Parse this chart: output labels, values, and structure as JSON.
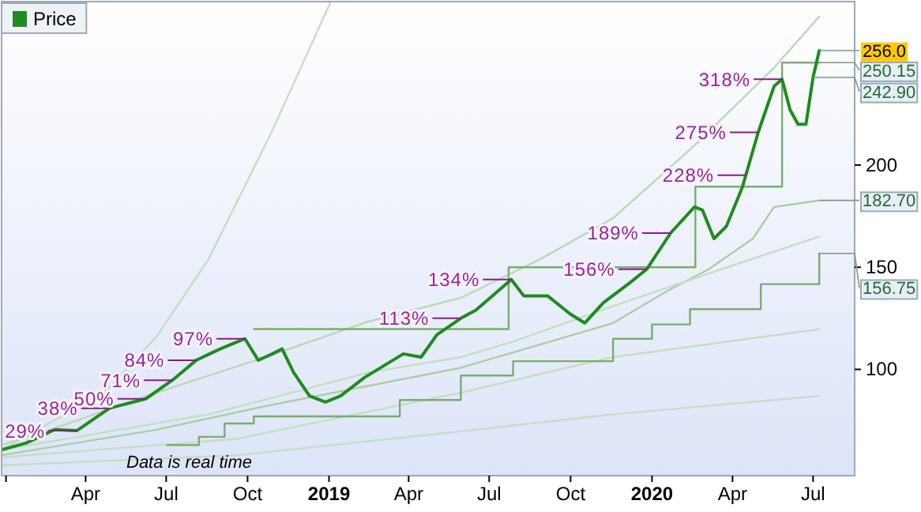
{
  "chart_data": {
    "type": "line",
    "xlim": [
      "2017-12-27",
      "2020-08-17"
    ],
    "ylim": [
      48,
      280
    ],
    "xticks": [
      {
        "value": "2018-01-01",
        "label": null
      },
      {
        "value": "2018-04-01",
        "label": "Apr"
      },
      {
        "value": "2018-07-01",
        "label": "Jul"
      },
      {
        "value": "2018-10-01",
        "label": "Oct"
      },
      {
        "value": "2019-01-01",
        "label": "2019"
      },
      {
        "value": "2019-04-01",
        "label": "Apr"
      },
      {
        "value": "2019-07-01",
        "label": "Jul"
      },
      {
        "value": "2019-10-01",
        "label": "Oct"
      },
      {
        "value": "2020-01-01",
        "label": "2020"
      },
      {
        "value": "2020-04-01",
        "label": "Apr"
      },
      {
        "value": "2020-07-01",
        "label": "Jul"
      }
    ],
    "yticks": [
      100,
      150,
      200
    ],
    "legend": "top left",
    "series": [
      {
        "color": "#c4dfc0",
        "x": [
          "2017-12-27",
          "2018-04-23",
          "2018-06-20",
          "2018-08-18",
          "2018-10-29",
          "2019-01-03"
        ],
        "values": [
          60.6,
          89,
          116,
          154,
          217,
          280
        ]
      },
      {
        "color": "#b9dab4",
        "x": [
          "2017-12-27",
          "2018-02-20",
          "2018-06-20",
          "2018-10-21",
          "2019-02-15",
          "2019-05-30",
          "2019-08-28",
          "2019-11-18",
          "2020-02-19",
          "2020-05-18",
          "2020-07-08"
        ],
        "values": [
          63,
          70.5,
          88.6,
          106,
          123.5,
          135,
          154,
          174,
          210,
          247.7,
          272.7
        ]
      },
      {
        "color": "#a9cfa2",
        "x": [
          "2017-12-27",
          "2018-06-20",
          "2018-10-21",
          "2019-02-15",
          "2019-05-30",
          "2019-11-18",
          "2020-01-19",
          "2020-03-05",
          "2020-04-24",
          "2020-05-18",
          "2020-07-08"
        ],
        "values": [
          58,
          70.5,
          82,
          92,
          100.8,
          122.7,
          138.6,
          149,
          164,
          179.5,
          182.7
        ]
      },
      {
        "color": "#c4dfc0",
        "x": [
          "2017-12-27",
          "2018-08-18",
          "2019-02-15",
          "2019-05-30",
          "2019-07-28",
          "2019-11-18",
          "2020-03-19",
          "2020-07-08"
        ],
        "values": [
          60.6,
          78,
          98.5,
          106,
          113.6,
          131,
          149,
          165
        ]
      },
      {
        "color": "#c4dfc0",
        "x": [
          "2017-12-27",
          "2018-09-19",
          "2019-05-30",
          "2019-11-18",
          "2020-07-08"
        ],
        "values": [
          57,
          66,
          88.6,
          106,
          119.7
        ]
      },
      {
        "color": "#c4dfc0",
        "x": [
          "2017-12-27",
          "2018-09-19",
          "2019-05-30",
          "2019-11-18",
          "2020-07-08"
        ],
        "values": [
          53,
          58,
          69.7,
          78,
          87
        ]
      },
      {
        "type": "step",
        "color": "#78ad72",
        "x": [
          "2018-10-08",
          "2019-07-23",
          "2020-02-19",
          "2020-05-27",
          "2020-07-08"
        ],
        "values": [
          119.7,
          150,
          189.4,
          250.15,
          250.15
        ]
      },
      {
        "type": "step",
        "color": "#78ad72",
        "x": [
          "2018-07-02",
          "2018-08-07",
          "2018-09-05",
          "2018-10-08",
          "2019-03-22",
          "2019-05-30",
          "2019-07-28",
          "2019-11-18",
          "2020-01-01",
          "2020-02-13",
          "2020-05-03",
          "2020-07-08"
        ],
        "values": [
          63,
          67,
          73.5,
          77,
          85,
          97,
          104,
          115,
          122,
          129.5,
          141.7,
          156.75
        ]
      },
      {
        "name": "Price",
        "color": "#1e8c1e",
        "x": [
          "2017-12-27",
          "2018-01-24",
          "2018-02-25",
          "2018-03-22",
          "2018-04-28",
          "2018-06-08",
          "2018-07-08",
          "2018-08-04",
          "2018-08-31",
          "2018-09-28",
          "2018-10-13",
          "2018-10-29",
          "2018-11-09",
          "2018-11-22",
          "2018-12-10",
          "2018-12-28",
          "2019-01-14",
          "2019-02-10",
          "2019-03-26",
          "2019-04-15",
          "2019-05-03",
          "2019-05-30",
          "2019-06-16",
          "2019-07-26",
          "2019-08-09",
          "2019-09-05",
          "2019-10-01",
          "2019-10-17",
          "2019-11-07",
          "2019-12-05",
          "2019-12-26",
          "2020-01-22",
          "2020-02-18",
          "2020-02-27",
          "2020-03-11",
          "2020-03-25",
          "2020-04-12",
          "2020-04-30",
          "2020-05-18",
          "2020-05-27",
          "2020-06-05",
          "2020-06-14",
          "2020-06-23",
          "2020-07-01",
          "2020-07-08"
        ],
        "values": [
          60.6,
          64,
          70.5,
          70,
          81,
          85.6,
          94.7,
          104.5,
          110,
          115,
          104.5,
          107.6,
          110,
          98.5,
          87,
          84,
          87,
          96,
          107.6,
          106,
          117,
          125,
          129,
          144,
          136,
          136,
          127,
          122.7,
          132.6,
          141.7,
          149,
          166.7,
          179.5,
          178,
          164,
          170,
          189,
          216,
          238.6,
          242,
          227,
          220,
          220,
          242.9,
          256
        ]
      }
    ],
    "annotations": [
      {
        "text": "29%",
        "x": "2018-03-22",
        "y": 70
      },
      {
        "text": "38%",
        "x": "2018-04-28",
        "y": 81
      },
      {
        "text": "50%",
        "x": "2018-06-08",
        "y": 85.6
      },
      {
        "text": "71%",
        "x": "2018-07-08",
        "y": 94.7
      },
      {
        "text": "84%",
        "x": "2018-08-04",
        "y": 104.5
      },
      {
        "text": "97%",
        "x": "2018-09-28",
        "y": 115
      },
      {
        "text": "113%",
        "x": "2019-05-30",
        "y": 125
      },
      {
        "text": "134%",
        "x": "2019-07-26",
        "y": 144
      },
      {
        "text": "156%",
        "x": "2019-12-26",
        "y": 149
      },
      {
        "text": "189%",
        "x": "2020-01-22",
        "y": 166.7
      },
      {
        "text": "228%",
        "x": "2020-04-16",
        "y": 195
      },
      {
        "text": "275%",
        "x": "2020-04-30",
        "y": 216
      },
      {
        "text": "318%",
        "x": "2020-05-27",
        "y": 242
      },
      {
        "text": "256.0",
        "x": "2020-07-08",
        "y": 256
      },
      {
        "text": "250.15",
        "x": "2020-07-08",
        "y": 250.15
      },
      {
        "text": "242.90",
        "x": "2020-07-01",
        "y": 242.9
      },
      {
        "text": "182.70",
        "x": "2020-07-08",
        "y": 182.7
      },
      {
        "text": "156.75",
        "x": "2020-07-08",
        "y": 156.75
      },
      "Data is real time"
    ]
  }
}
